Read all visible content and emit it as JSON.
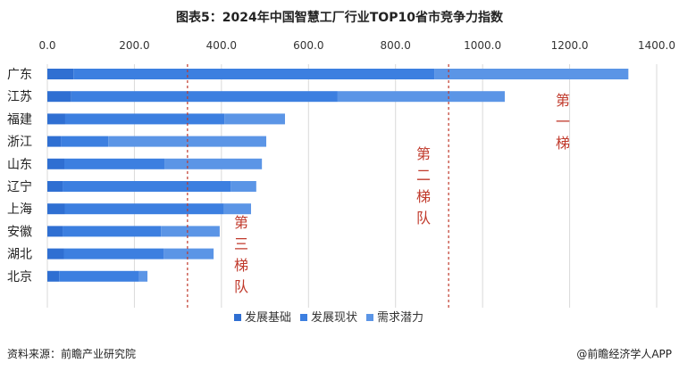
{
  "chart_data": {
    "type": "bar",
    "orientation": "horizontal",
    "stacked": true,
    "title": "图表5：2024年中国智慧工厂行业TOP10省市竞争力指数",
    "categories": [
      "广东",
      "江苏",
      "福建",
      "浙江",
      "山东",
      "辽宁",
      "上海",
      "安徽",
      "湖北",
      "北京"
    ],
    "series": [
      {
        "name": "发展基础",
        "color": "#2f6fd2",
        "values": [
          60,
          55,
          41,
          31,
          39,
          35,
          40,
          35,
          38,
          27
        ]
      },
      {
        "name": "发展现状",
        "color": "#3c7fe0",
        "values": [
          829,
          612,
          366,
          109,
          230,
          386,
          366,
          226,
          229,
          184
        ]
      },
      {
        "name": "需求潜力",
        "color": "#5b95e6",
        "values": [
          446,
          384,
          139,
          363,
          224,
          59,
          62,
          135,
          115,
          19
        ]
      }
    ],
    "xlim": [
      0,
      1400
    ],
    "xticks": [
      "0.0",
      "200.0",
      "400.0",
      "600.0",
      "800.0",
      "1000.0",
      "1200.0",
      "1400.0"
    ],
    "xtick_values": [
      0,
      200,
      400,
      600,
      800,
      1000,
      1200,
      1400
    ],
    "grid": true,
    "legend_placement": "bottom",
    "reference_lines": [
      {
        "x": 322,
        "color": "#c0392b",
        "style": "dashed"
      },
      {
        "x": 922,
        "color": "#c0392b",
        "style": "dashed"
      }
    ],
    "annotations": [
      {
        "text": "第三梯队",
        "color": "#c0392b"
      },
      {
        "text": "第二梯队",
        "color": "#c0392b"
      },
      {
        "text": "第一梯",
        "color": "#c0392b"
      }
    ]
  },
  "footer": {
    "source": "资料来源：前瞻产业研究院",
    "brand": "@前瞻经济学人APP"
  }
}
